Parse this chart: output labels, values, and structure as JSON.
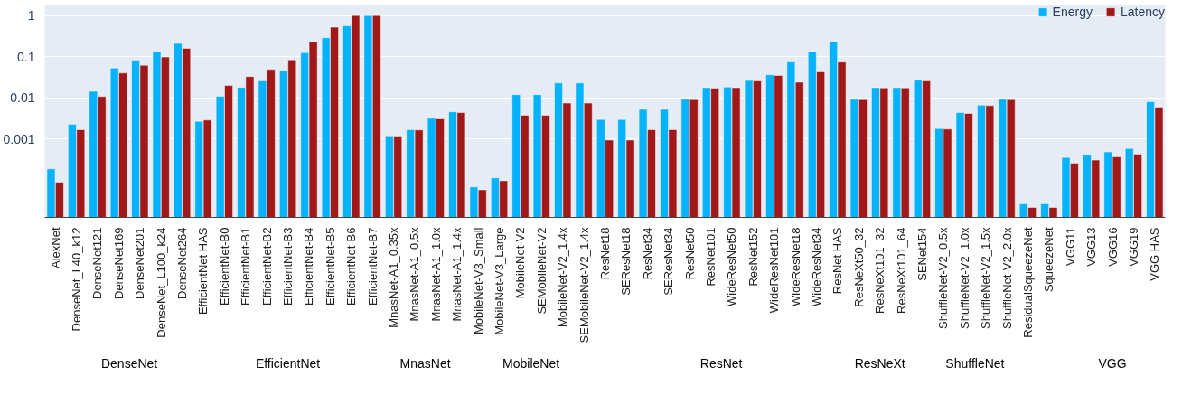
{
  "chart_data": {
    "type": "bar",
    "log": "y",
    "grid": "y",
    "legend": "top right",
    "categories": [
      "AlexNet",
      "DenseNet_L40_k12",
      "DenseNet121",
      "DenseNet169",
      "DenseNet201",
      "DenseNet_L100_k24",
      "DenseNet264",
      "EfficientNet HAS",
      "EfficientNet-B0",
      "EfficientNet-B1",
      "EfficientNet-B2",
      "EfficientNet-B3",
      "EfficientNet-B4",
      "EfficientNet-B5",
      "EfficientNet-B6",
      "EfficientNet-B7",
      "MnasNet-A1_0.35x",
      "MnasNet-A1_0.5x",
      "MnasNet-A1_1.0x",
      "MnasNet-A1_1.4x",
      "MobileNet-V3_Small",
      "MobileNet-V3_Large",
      "MobileNet-V2",
      "SEMobileNet-V2",
      "MobileNet-V2_1.4x",
      "SEMobileNet-V2_1.4x",
      "ResNet18",
      "SEResNet18",
      "ResNet34",
      "SEResNet34",
      "ResNet50",
      "ResNet101",
      "WideResNet50",
      "ResNet152",
      "WideResNet101",
      "WideResNet18",
      "WideResNet34",
      "ResNet HAS",
      "ResNeXt50_32",
      "ResNeXt101_32",
      "ResNeXt101_64",
      "SENet154",
      "ShuffleNet-V2_0.5x",
      "ShuffleNet-V2_1.0x",
      "ShuffleNet-V2_1.5x",
      "ShuffleNet-V2_2.0x",
      "ResidualSqueezeNet",
      "SqueezeNet",
      "VGG11",
      "VGG13",
      "VGG16",
      "VGG19",
      "VGG HAS"
    ],
    "series": [
      {
        "name": "Energy",
        "color": "#05b2fd",
        "values": [
          0.00019,
          0.0023,
          0.0145,
          0.053,
          0.083,
          0.133,
          0.21,
          0.0027,
          0.011,
          0.018,
          0.026,
          0.046,
          0.125,
          0.29,
          0.56,
          1,
          0.0012,
          0.0017,
          0.0032,
          0.0046,
          6.9e-05,
          0.000115,
          0.012,
          0.012,
          0.023,
          0.023,
          0.003,
          0.003,
          0.0053,
          0.0053,
          0.0093,
          0.0178,
          0.0184,
          0.0264,
          0.0365,
          0.075,
          0.133,
          0.23,
          0.0093,
          0.0178,
          0.0178,
          0.027,
          0.0018,
          0.0044,
          0.0067,
          0.0093,
          2.7e-05,
          2.7e-05,
          0.00036,
          0.00042,
          0.00049,
          0.00059,
          0.0081
        ]
      },
      {
        "name": "Latency",
        "color": "#a01818",
        "values": [
          9e-05,
          0.0017,
          0.0108,
          0.04,
          0.062,
          0.098,
          0.16,
          0.0029,
          0.02,
          0.033,
          0.049,
          0.084,
          0.226,
          0.52,
          1,
          1,
          0.00118,
          0.00167,
          0.0031,
          0.0044,
          5.9e-05,
          9.8e-05,
          0.0038,
          0.0038,
          0.0075,
          0.0075,
          0.00095,
          0.00095,
          0.0017,
          0.0017,
          0.0091,
          0.0173,
          0.0178,
          0.0257,
          0.035,
          0.024,
          0.043,
          0.074,
          0.0091,
          0.0175,
          0.0175,
          0.026,
          0.00175,
          0.0042,
          0.0065,
          0.0091,
          2.2e-05,
          2.2e-05,
          0.00026,
          0.00031,
          0.00037,
          0.00043,
          0.006
        ]
      }
    ],
    "ylim": [
      1.26e-05,
      1.8
    ],
    "yticks": [
      0.001,
      0.01,
      0.1,
      1
    ],
    "annotations": [
      "DenseNet",
      "EfficientNet",
      "MnasNet",
      "MobileNet",
      "ResNet",
      "ResNeXt",
      "ShuffleNet",
      "VGG"
    ]
  }
}
